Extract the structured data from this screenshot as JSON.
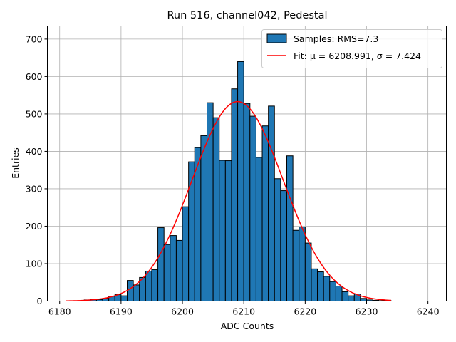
{
  "chart_data": {
    "type": "bar",
    "title": "Run 516, channel042, Pedestal",
    "xlabel": "ADC Counts",
    "ylabel": "Entries",
    "xlim": [
      6178,
      6243
    ],
    "ylim": [
      0,
      735
    ],
    "xticks": [
      6180,
      6190,
      6200,
      6210,
      6220,
      6230,
      6240
    ],
    "yticks": [
      0,
      100,
      200,
      300,
      400,
      500,
      600,
      700
    ],
    "grid": true,
    "legend_position": "top-right",
    "bin_width": 1,
    "series": [
      {
        "name": "Samples: RMS=7.3",
        "kind": "histogram",
        "color": "#1f77b4",
        "edgecolor": "#000000",
        "bin_starts": [
          6184,
          6185,
          6186,
          6187,
          6188,
          6189,
          6190,
          6191,
          6192,
          6193,
          6194,
          6195,
          6196,
          6197,
          6198,
          6199,
          6200,
          6201,
          6202,
          6203,
          6204,
          6205,
          6206,
          6207,
          6208,
          6209,
          6210,
          6211,
          6212,
          6213,
          6214,
          6215,
          6216,
          6217,
          6218,
          6219,
          6220,
          6221,
          6222,
          6223,
          6224,
          6225,
          6226,
          6227,
          6228,
          6229,
          6230,
          6231,
          6232,
          6233
        ],
        "values": [
          3,
          4,
          4,
          7,
          13,
          17,
          14,
          55,
          43,
          63,
          80,
          84,
          196,
          151,
          175,
          162,
          252,
          372,
          410,
          442,
          530,
          490,
          376,
          375,
          567,
          640,
          528,
          494,
          384,
          468,
          521,
          327,
          295,
          388,
          189,
          198,
          155,
          86,
          78,
          66,
          52,
          40,
          25,
          14,
          19,
          7,
          3,
          2,
          1,
          1
        ]
      },
      {
        "name": "Fit: μ = 6208.991, σ = 7.424",
        "kind": "gaussian-fit",
        "color": "#ff0000",
        "mu": 6208.991,
        "sigma": 7.424,
        "amplitude": 533,
        "x_range": [
          6181,
          6234
        ]
      }
    ]
  }
}
